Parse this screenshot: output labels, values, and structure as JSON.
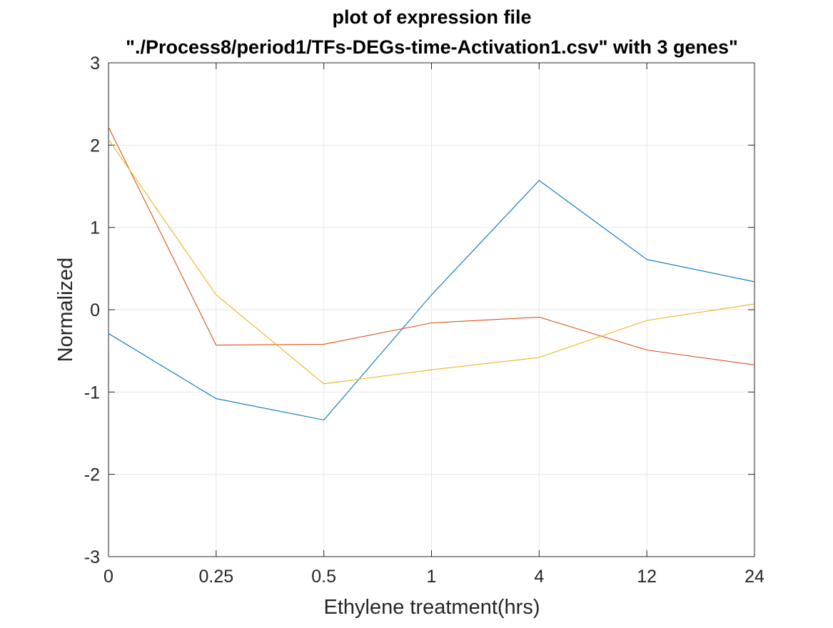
{
  "chart_data": {
    "type": "line",
    "title_line1": "plot of expression file",
    "title_line2": "\"./Process8/period1/TFs-DEGs-time-Activation1.csv\" with 3 genes\"",
    "xlabel": "Ethylene treatment(hrs)",
    "ylabel": "Normalized",
    "categories": [
      "0",
      "0.25",
      "0.5",
      "1",
      "4",
      "12",
      "24"
    ],
    "ylim": [
      -3,
      3
    ],
    "yticks": [
      "3",
      "2",
      "1",
      "0",
      "-1",
      "-2",
      "-3"
    ],
    "grid": true,
    "series": [
      {
        "color": "#0072BD",
        "values": [
          -0.29,
          -1.08,
          -1.34,
          0.18,
          1.57,
          0.61,
          0.34
        ]
      },
      {
        "color": "#D95319",
        "values": [
          2.22,
          -0.43,
          -0.42,
          -0.16,
          -0.09,
          -0.49,
          -0.67
        ]
      },
      {
        "color": "#EDB120",
        "values": [
          2.07,
          0.18,
          -0.9,
          -0.73,
          -0.58,
          -0.13,
          0.07
        ]
      }
    ]
  }
}
